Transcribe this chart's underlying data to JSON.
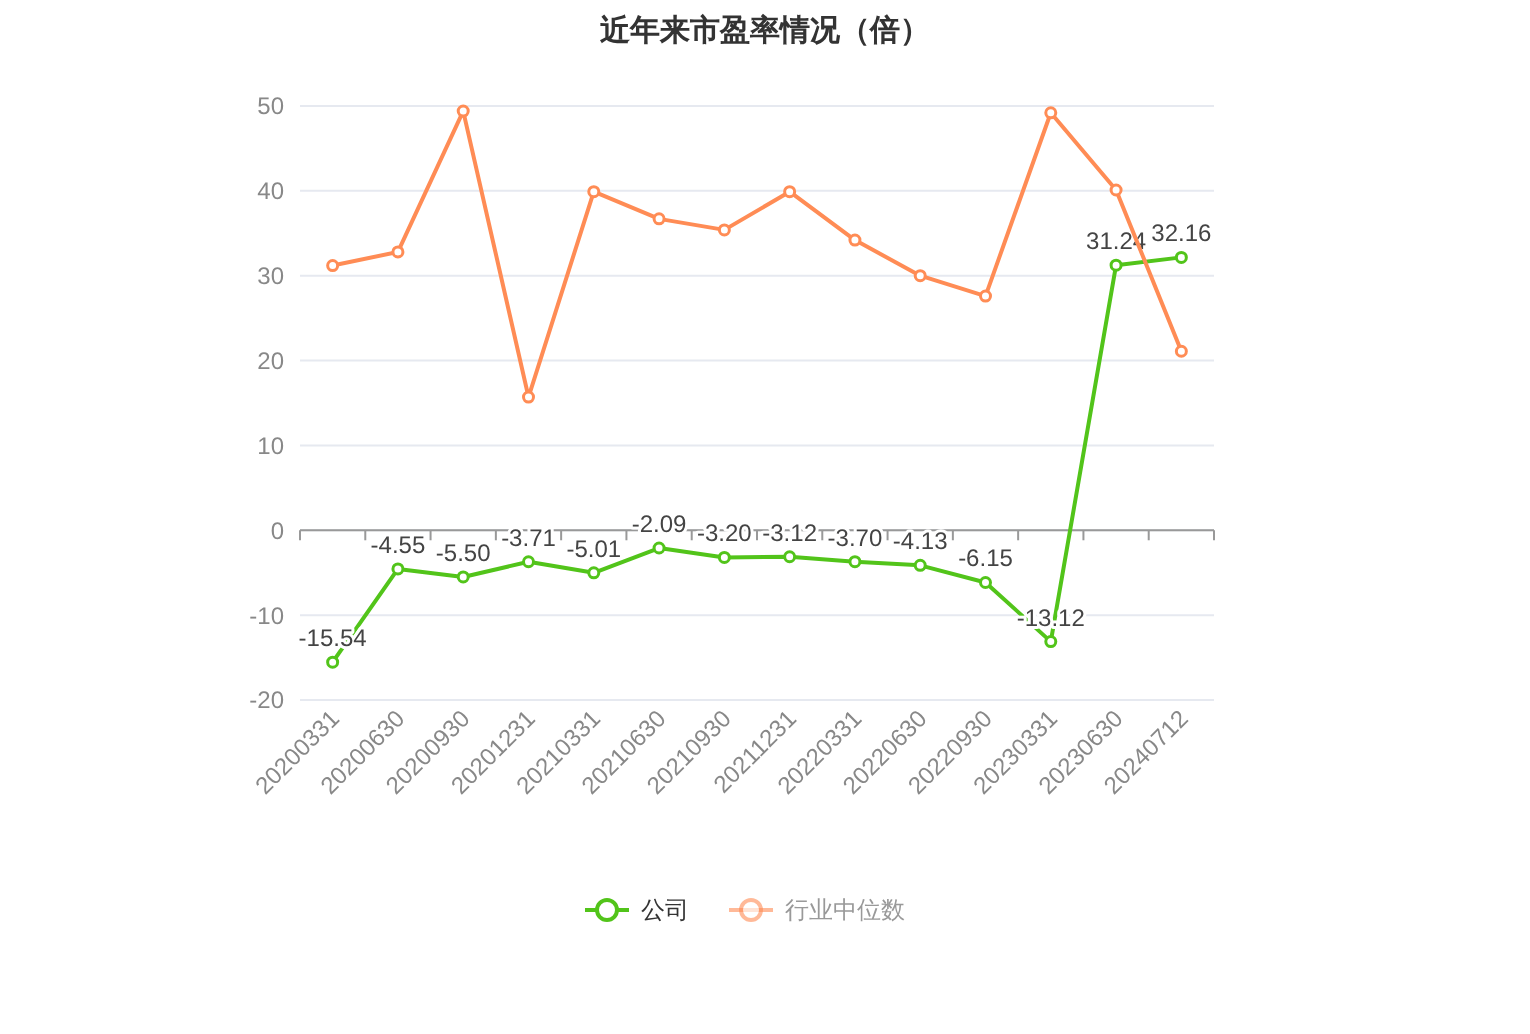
{
  "chart_data": {
    "type": "line",
    "title": "近年来市盈率情况（倍）",
    "categories": [
      "20200331",
      "20200630",
      "20200930",
      "20201231",
      "20210331",
      "20210630",
      "20210930",
      "20211231",
      "20220331",
      "20220630",
      "20220930",
      "20230331",
      "20230630",
      "20240712"
    ],
    "series": [
      {
        "name": "公司",
        "color": "#52c41a",
        "values": [
          -15.54,
          -4.55,
          -5.5,
          -3.71,
          -5.01,
          -2.09,
          -3.2,
          -3.12,
          -3.7,
          -4.13,
          -6.15,
          -13.12,
          31.24,
          32.16
        ],
        "value_labels": [
          "-15.54",
          "-4.55",
          "-5.50",
          "-3.71",
          "-5.01",
          "-2.09",
          "-3.20",
          "-3.12",
          "-3.70",
          "-4.13",
          "-6.15",
          "-13.12",
          "31.24",
          "32.16"
        ]
      },
      {
        "name": "行业中位数",
        "color": "#ff8c55",
        "values": [
          31.2,
          32.8,
          49.4,
          15.7,
          39.9,
          36.7,
          35.4,
          39.9,
          34.2,
          30.0,
          27.6,
          49.2,
          40.1,
          21.1
        ]
      }
    ],
    "ylim": [
      -20,
      50
    ],
    "yticks": [
      -20,
      -10,
      0,
      10,
      20,
      30,
      40,
      50
    ],
    "grid": "y",
    "legend": "bottom",
    "marker": "circle",
    "line_style": "solid"
  }
}
